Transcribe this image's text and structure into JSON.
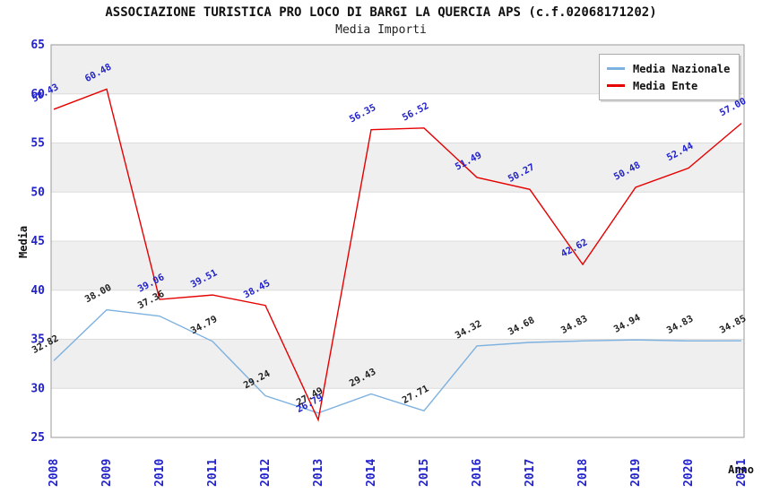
{
  "chart_data": {
    "type": "line",
    "title": "ASSOCIAZIONE TURISTICA PRO LOCO DI BARGI LA QUERCIA APS (c.f.02068171202)",
    "subtitle": "Media Importi",
    "xlabel": "Anno",
    "ylabel": "Media",
    "ylim": [
      25,
      65
    ],
    "ytick_step": 5,
    "yticks": [
      25,
      30,
      35,
      40,
      45,
      50,
      55,
      60,
      65
    ],
    "grid": true,
    "legend_position": "top-right",
    "categories": [
      "2008",
      "2009",
      "2010",
      "2011",
      "2012",
      "2013",
      "2014",
      "2015",
      "2016",
      "2017",
      "2018",
      "2019",
      "2020",
      "2021"
    ],
    "series": [
      {
        "name": "Media Nazionale",
        "color": "#7db1e0",
        "label_color": "#222222",
        "values": [
          32.82,
          38.0,
          37.36,
          34.79,
          29.24,
          27.49,
          29.43,
          27.71,
          34.32,
          34.68,
          34.83,
          34.94,
          34.83,
          34.85
        ]
      },
      {
        "name": "Media Ente",
        "color": "#e60000",
        "label_color": "#2222cc",
        "values": [
          58.43,
          60.48,
          39.06,
          39.51,
          38.45,
          26.79,
          56.35,
          56.52,
          51.49,
          50.27,
          42.62,
          50.48,
          52.44,
          57.0
        ]
      }
    ],
    "colors": {
      "tick_label": "#2222cc",
      "band_white": "#ffffff",
      "band_gray": "#efefef",
      "gridline": "#dcdcdc",
      "plot_border": "#999999"
    }
  }
}
